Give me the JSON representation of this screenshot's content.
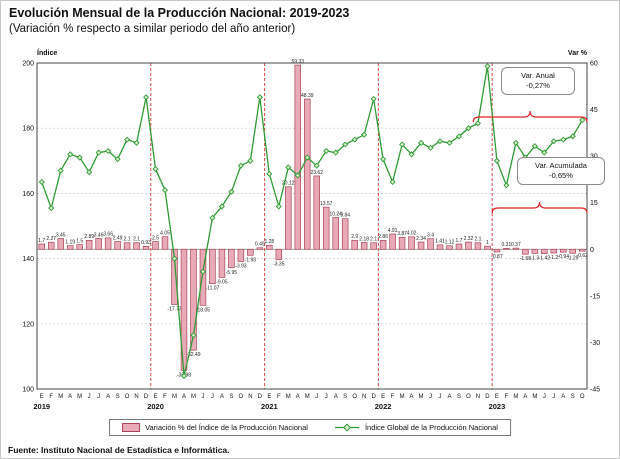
{
  "header": {
    "title": "Evolución Mensual de la Producción Nacional: 2019-2023",
    "subtitle": "(Variación % respecto a similar periodo del año anterior)"
  },
  "chart_data": {
    "type": "bar+line combo",
    "title": "Evolución Mensual de la Producción Nacional: 2019-2023",
    "subtitle": "(Variación % respecto a similar periodo del año anterior)",
    "left_axis": {
      "label": "Índice",
      "min": 100,
      "max": 200,
      "ticks": [
        100,
        120,
        140,
        160,
        180,
        200
      ]
    },
    "right_axis": {
      "label": "Var %",
      "min": -45,
      "max": 60,
      "ticks": [
        -45,
        -30,
        -15,
        0,
        15,
        30,
        45,
        60
      ]
    },
    "grid": "horizontal dotted at left-axis ticks, red dashed vertical lines at year boundaries",
    "years": [
      {
        "label": "2019",
        "months": [
          "E",
          "F",
          "M",
          "A",
          "M",
          "J",
          "J",
          "A",
          "S",
          "O",
          "N",
          "D"
        ]
      },
      {
        "label": "2020",
        "months": [
          "E",
          "F",
          "M",
          "A",
          "M",
          "J",
          "J",
          "A",
          "S",
          "O",
          "N",
          "D"
        ]
      },
      {
        "label": "2021",
        "months": [
          "E",
          "F",
          "M",
          "A",
          "M",
          "J",
          "J",
          "A",
          "S",
          "O",
          "N",
          "D"
        ]
      },
      {
        "label": "2022",
        "months": [
          "E",
          "F",
          "M",
          "A",
          "M",
          "J",
          "J",
          "A",
          "S",
          "O",
          "N",
          "D"
        ]
      },
      {
        "label": "2023",
        "months": [
          "E",
          "F",
          "M",
          "A",
          "M",
          "J",
          "J",
          "A",
          "S",
          "O"
        ]
      }
    ],
    "series": [
      {
        "name": "Variación % del Índice de la Producción Nacional",
        "type": "bar",
        "axis": "right",
        "color": "#e8aab6",
        "border": "#a94458",
        "values": [
          1.7,
          2.27,
          3.45,
          1.19,
          1.5,
          2.89,
          3.46,
          3.66,
          2.49,
          2.1,
          2.1,
          0.93,
          2.5,
          4.05,
          -17.77,
          -38.98,
          -32.49,
          -18.05,
          -11.07,
          -9.05,
          -5.95,
          -3.93,
          -1.93,
          0.49,
          1.28,
          -3.35,
          20.12,
          59.33,
          48.39,
          23.62,
          13.57,
          10.24,
          9.84,
          2.9,
          2.18,
          2.1,
          2.86,
          4.91,
          3.87,
          4.02,
          2.34,
          3.4,
          1.41,
          1.12,
          1.7,
          2.32,
          2.1,
          1.0,
          -0.87,
          0.31,
          0.37,
          -1.58,
          -1.3,
          -1.42,
          -1.2,
          -0.94,
          -1.29,
          -0.62
        ]
      },
      {
        "name": "Índice Global de la Producción Nacional",
        "type": "line",
        "axis": "left",
        "color": "#2f9b33",
        "values": [
          163.5,
          155.5,
          167,
          172,
          171,
          166.5,
          172.5,
          173,
          170.5,
          176.5,
          175.5,
          189.5,
          167.5,
          161,
          140,
          104,
          116.5,
          136,
          152.5,
          156,
          160.5,
          168.5,
          170,
          189.5,
          166,
          156,
          168,
          165.5,
          171,
          168.5,
          173,
          172.5,
          175,
          176.5,
          178,
          189,
          170.5,
          163.5,
          175,
          172,
          175.5,
          174,
          176,
          175.5,
          177.5,
          180,
          181.5,
          199,
          170,
          162.5,
          175.5,
          171,
          174.5,
          172.5,
          176,
          176.5,
          177.5,
          182.5
        ]
      }
    ],
    "annotations": [
      {
        "label": "Var. Anual",
        "value": "-0,27%",
        "span": [
          46,
          58
        ],
        "brace_y": 72
      },
      {
        "label": "Var. Acumulada",
        "value": "-0,65%",
        "span": [
          48,
          58
        ],
        "brace_y": 163
      }
    ],
    "legend_position": "bottom"
  },
  "footer": {
    "source": "Fuente: Instituto Nacional de Estadística e Informática."
  }
}
